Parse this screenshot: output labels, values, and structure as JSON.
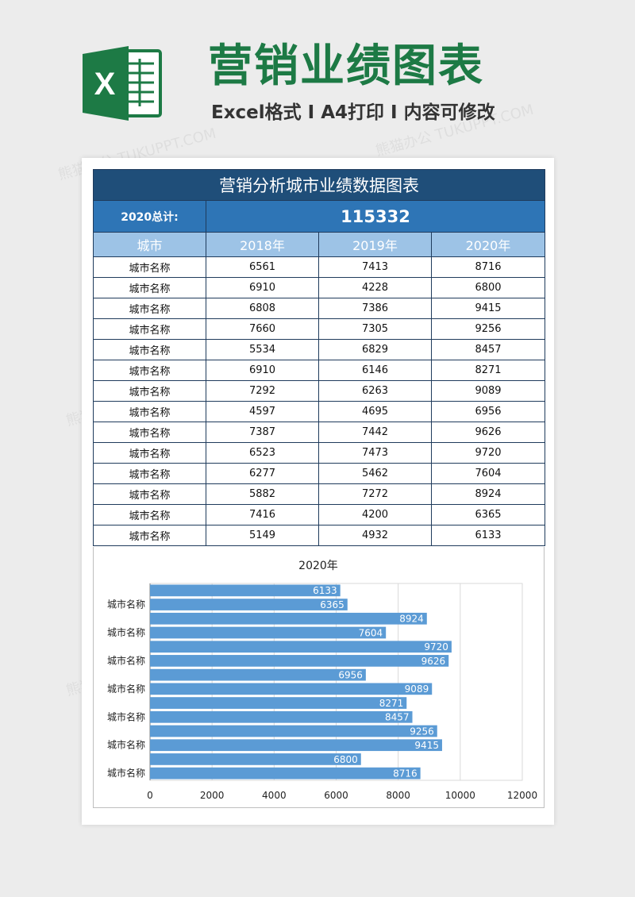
{
  "header": {
    "logo_letter": "X",
    "title": "营销业绩图表",
    "subtitle": "Excel格式 I A4打印 I 内容可修改",
    "accent_color": "#1d7a45"
  },
  "watermark": {
    "text": "熊猫办公 TUKUPPT.COM"
  },
  "sheet": {
    "title": "营销分析城市业绩数据图表",
    "total_label": "2020总计:",
    "total_value": "115332",
    "columns": [
      "城市",
      "2018年",
      "2019年",
      "2020年"
    ],
    "rows": [
      [
        "城市名称",
        "6561",
        "7413",
        "8716"
      ],
      [
        "城市名称",
        "6910",
        "4228",
        "6800"
      ],
      [
        "城市名称",
        "6808",
        "7386",
        "9415"
      ],
      [
        "城市名称",
        "7660",
        "7305",
        "9256"
      ],
      [
        "城市名称",
        "5534",
        "6829",
        "8457"
      ],
      [
        "城市名称",
        "6910",
        "6146",
        "8271"
      ],
      [
        "城市名称",
        "7292",
        "6263",
        "9089"
      ],
      [
        "城市名称",
        "4597",
        "4695",
        "6956"
      ],
      [
        "城市名称",
        "7387",
        "7442",
        "9626"
      ],
      [
        "城市名称",
        "6523",
        "7473",
        "9720"
      ],
      [
        "城市名称",
        "6277",
        "5462",
        "7604"
      ],
      [
        "城市名称",
        "5882",
        "7272",
        "8924"
      ],
      [
        "城市名称",
        "7416",
        "4200",
        "6365"
      ],
      [
        "城市名称",
        "5149",
        "4932",
        "6133"
      ]
    ],
    "colors": {
      "title_bg": "#1f4e79",
      "total_bg": "#2e75b6",
      "header_bg": "#9dc3e6"
    }
  },
  "chart_data": {
    "type": "bar",
    "orientation": "horizontal",
    "title": "2020年",
    "categories_top_to_bottom": [
      "城市名称",
      "城市名称",
      "城市名称",
      "城市名称",
      "城市名称",
      "城市名称",
      "城市名称",
      "城市名称",
      "城市名称",
      "城市名称",
      "城市名称",
      "城市名称",
      "城市名称",
      "城市名称"
    ],
    "values_top_to_bottom": [
      6133,
      6365,
      8924,
      7604,
      9720,
      9626,
      6956,
      9089,
      8271,
      8457,
      9256,
      9415,
      6800,
      8716
    ],
    "visible_category_labels": [
      "城市名称",
      "城市名称",
      "城市名称",
      "城市名称",
      "城市名称",
      "城市名称",
      "城市名称"
    ],
    "xlim": [
      0,
      12000
    ],
    "x_ticks": [
      "0",
      "2000",
      "4000",
      "6000",
      "8000",
      "10000",
      "12000"
    ],
    "bar_color": "#5b9bd5",
    "grid": "vertical"
  }
}
